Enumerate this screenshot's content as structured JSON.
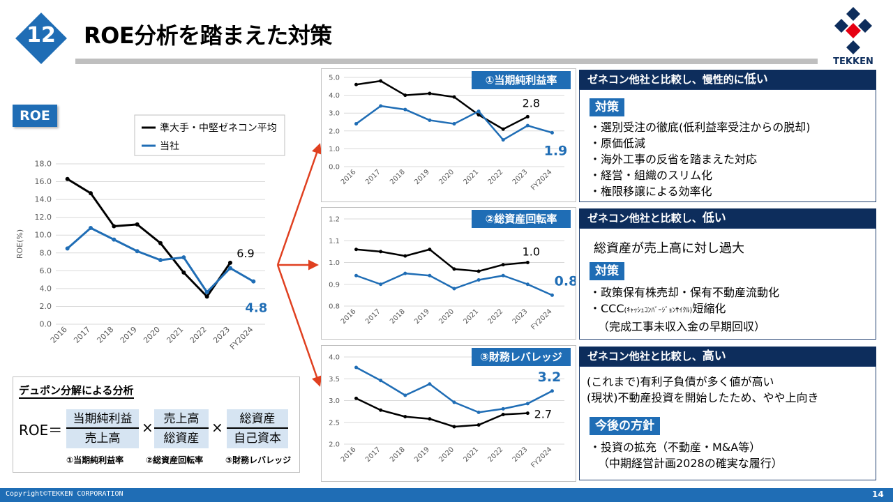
{
  "slide": {
    "number": "12",
    "title": "ROE分析を踏まえた対策",
    "page_number": "14",
    "copyright": "Copyright©TEKKEN CORPORATION"
  },
  "logo": {
    "text": "TEKKEN",
    "colors": {
      "navy": "#0d2d5c",
      "red": "#e60012"
    }
  },
  "colors": {
    "peer": "#000000",
    "company": "#1f6db5",
    "header": "#0d2d5c",
    "accent": "#1f6db5",
    "arrow": "#e04020"
  },
  "chart_data": [
    {
      "id": "roe",
      "type": "line",
      "badge": "ROE",
      "ylabel": "ROE(%)",
      "categories": [
        "2016",
        "2017",
        "2018",
        "2019",
        "2020",
        "2021",
        "2022",
        "2023",
        "FY2024"
      ],
      "ylim": [
        0,
        18
      ],
      "yticks": [
        "0.0",
        "2.0",
        "4.0",
        "6.0",
        "8.0",
        "10.0",
        "12.0",
        "14.0",
        "16.0",
        "18.0"
      ],
      "legend": [
        "準大手・中堅ゼネコン平均",
        "当社"
      ],
      "series": [
        {
          "name": "準大手・中堅ゼネコン平均",
          "values": [
            16.3,
            14.7,
            11.0,
            11.2,
            9.1,
            5.8,
            3.1,
            6.9,
            null
          ],
          "end_label": "6.9"
        },
        {
          "name": "当社",
          "values": [
            8.5,
            10.8,
            9.5,
            8.2,
            7.2,
            7.5,
            3.6,
            6.3,
            4.8
          ],
          "end_label": "4.8"
        }
      ]
    },
    {
      "id": "net-margin",
      "type": "line",
      "label": "①当期純利益率",
      "categories": [
        "2016",
        "2017",
        "2018",
        "2019",
        "2020",
        "2021",
        "2022",
        "2023",
        "FY2024"
      ],
      "ylim": [
        0,
        5
      ],
      "yticks": [
        "0.0",
        "1.0",
        "2.0",
        "3.0",
        "4.0",
        "5.0"
      ],
      "series": [
        {
          "values": [
            4.6,
            4.8,
            4.0,
            4.1,
            3.9,
            2.9,
            2.1,
            2.8,
            null
          ],
          "end_label": "2.8"
        },
        {
          "values": [
            2.4,
            3.4,
            3.2,
            2.6,
            2.4,
            3.1,
            1.5,
            2.3,
            1.9
          ],
          "end_label": "1.9"
        }
      ]
    },
    {
      "id": "asset-turnover",
      "type": "line",
      "label": "②総資産回転率",
      "categories": [
        "2016",
        "2017",
        "2018",
        "2019",
        "2020",
        "2021",
        "2022",
        "2023",
        "FY2024"
      ],
      "ylim": [
        0.8,
        1.2
      ],
      "yticks": [
        "0.8",
        "0.9",
        "1.0",
        "1.1",
        "1.2"
      ],
      "series": [
        {
          "values": [
            1.06,
            1.05,
            1.03,
            1.06,
            0.97,
            0.96,
            0.99,
            1.0,
            null
          ],
          "end_label": "1.0"
        },
        {
          "values": [
            0.94,
            0.9,
            0.95,
            0.94,
            0.88,
            0.92,
            0.94,
            0.9,
            0.85
          ],
          "end_label": "0.8"
        }
      ]
    },
    {
      "id": "leverage",
      "type": "line",
      "label": "③財務レバレッジ",
      "categories": [
        "2016",
        "2017",
        "2018",
        "2019",
        "2020",
        "2021",
        "2022",
        "2023",
        "FY2024"
      ],
      "ylim": [
        2.0,
        4.0
      ],
      "yticks": [
        "2.0",
        "2.5",
        "3.0",
        "3.5",
        "4.0"
      ],
      "series": [
        {
          "values": [
            3.05,
            2.78,
            2.63,
            2.58,
            2.4,
            2.44,
            2.68,
            2.71,
            null
          ],
          "end_label": "2.7"
        },
        {
          "values": [
            3.76,
            3.46,
            3.12,
            3.38,
            2.96,
            2.73,
            2.81,
            2.93,
            3.22
          ],
          "end_label": "3.2"
        }
      ]
    }
  ],
  "panels": {
    "p1": {
      "header_prefix": "ゼネコン他社と比較し、慢性的に",
      "header_emph": "低い",
      "tag": "対策",
      "items": [
        "・選別受注の徹底(低利益率受注からの脱却)",
        "・原価低減",
        "・海外工事の反省を踏まえた対応",
        "・経営・組織のスリム化",
        "・権限移譲による効率化"
      ]
    },
    "p2": {
      "header_prefix": "ゼネコン他社と比較し、",
      "header_emph": "低い",
      "lead": "総資産が売上高に対し過大",
      "tag": "対策",
      "items": [
        "・政策保有株売却・保有不動産流動化",
        "（完成工事未収入金の早期回収）"
      ],
      "ccc_prefix": "・CCC",
      "ccc_small": "(ｷｬｯｼｭｺﾝﾊﾞｰｼﾞｮﾝｻｲｸﾙ)",
      "ccc_suffix": "短縮化"
    },
    "p3": {
      "header_prefix": "ゼネコン他社と比較し、",
      "header_emph": "高い",
      "lines": [
        "(これまで)有利子負債が多く値が高い",
        "(現状)不動産投資を開始したため、やや上向き"
      ],
      "tag": "今後の方針",
      "items": [
        "・投資の拡充（不動産・M&A等）",
        "（中期経営計画2028の確実な履行）"
      ]
    }
  },
  "dupont": {
    "title": "デュポン分解による分析",
    "lhs": "ROE＝",
    "times": "×",
    "fractions": [
      {
        "num": "当期純利益",
        "den": "売上高"
      },
      {
        "num": "売上高",
        "den": "総資産"
      },
      {
        "num": "総資産",
        "den": "自己資本"
      }
    ],
    "captions": [
      "①当期純利益率",
      "②総資産回転率",
      "③財務レバレッジ"
    ]
  }
}
